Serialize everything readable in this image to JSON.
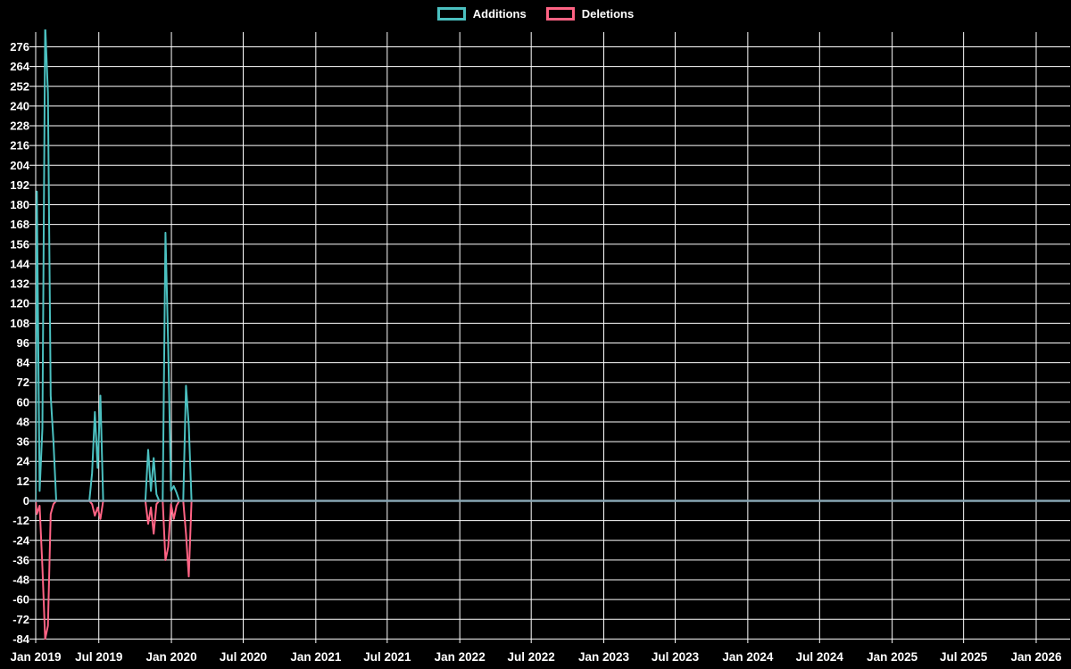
{
  "legend": {
    "items": [
      {
        "label": "Additions",
        "color": "#4bc0c0"
      },
      {
        "label": "Deletions",
        "color": "#ff6384"
      }
    ]
  },
  "chart_data": {
    "type": "line",
    "title": "",
    "xlabel": "",
    "ylabel": "",
    "legend_position": "top",
    "grid": true,
    "bg_color": "#000000",
    "grid_color": "#ffffff",
    "text_color": "#ffffff",
    "zero_line_color": "#87a6b3",
    "ylim": [
      -84,
      276
    ],
    "y_tick_step": 12,
    "y_ticks": [
      276,
      264,
      252,
      240,
      228,
      216,
      204,
      192,
      180,
      168,
      156,
      144,
      132,
      120,
      108,
      96,
      84,
      72,
      60,
      48,
      36,
      24,
      12,
      0,
      -12,
      -24,
      -36,
      -48,
      -60,
      -72,
      -84
    ],
    "x_range": {
      "min": "2019-01-22",
      "max": "2026-03-28"
    },
    "x_ticks": [
      {
        "label": "Jan 2019",
        "date": "2019-01-22"
      },
      {
        "label": "Jul 2019",
        "date": "2019-07-01"
      },
      {
        "label": "Jan 2020",
        "date": "2020-01-01"
      },
      {
        "label": "Jul 2020",
        "date": "2020-07-01"
      },
      {
        "label": "Jan 2021",
        "date": "2021-01-01"
      },
      {
        "label": "Jul 2021",
        "date": "2021-07-01"
      },
      {
        "label": "Jan 2022",
        "date": "2022-01-01"
      },
      {
        "label": "Jul 2022",
        "date": "2022-07-01"
      },
      {
        "label": "Jan 2023",
        "date": "2023-01-01"
      },
      {
        "label": "Jul 2023",
        "date": "2023-07-01"
      },
      {
        "label": "Jan 2024",
        "date": "2024-01-01"
      },
      {
        "label": "Jul 2024",
        "date": "2024-07-01"
      },
      {
        "label": "Jan 2025",
        "date": "2025-01-01"
      },
      {
        "label": "Jul 2025",
        "date": "2025-07-01"
      },
      {
        "label": "Jan 2026",
        "date": "2026-01-01"
      }
    ],
    "series": [
      {
        "name": "Additions",
        "color": "#4bc0c0",
        "key": "additions"
      },
      {
        "name": "Deletions",
        "color": "#ff6384",
        "key": "deletions"
      }
    ],
    "points": [
      {
        "date": "2019-01-22",
        "additions": 0,
        "deletions": 0
      },
      {
        "date": "2019-01-25",
        "additions": 188,
        "deletions": -8
      },
      {
        "date": "2019-02-01",
        "additions": 6,
        "deletions": -3
      },
      {
        "date": "2019-02-08",
        "additions": 44,
        "deletions": -40
      },
      {
        "date": "2019-02-15",
        "additions": 290,
        "deletions": -84
      },
      {
        "date": "2019-02-22",
        "additions": 248,
        "deletions": -76
      },
      {
        "date": "2019-03-01",
        "additions": 64,
        "deletions": -8
      },
      {
        "date": "2019-03-08",
        "additions": 36,
        "deletions": -2
      },
      {
        "date": "2019-03-15",
        "additions": 0,
        "deletions": 0
      },
      {
        "date": "2019-06-07",
        "additions": 0,
        "deletions": 0
      },
      {
        "date": "2019-06-14",
        "additions": 17,
        "deletions": -2
      },
      {
        "date": "2019-06-21",
        "additions": 54,
        "deletions": -9
      },
      {
        "date": "2019-06-28",
        "additions": 20,
        "deletions": -4
      },
      {
        "date": "2019-07-05",
        "additions": 64,
        "deletions": -11
      },
      {
        "date": "2019-07-12",
        "additions": 0,
        "deletions": 0
      },
      {
        "date": "2019-10-27",
        "additions": 0,
        "deletions": 0
      },
      {
        "date": "2019-11-03",
        "additions": 31,
        "deletions": -14
      },
      {
        "date": "2019-11-10",
        "additions": 6,
        "deletions": -4
      },
      {
        "date": "2019-11-17",
        "additions": 26,
        "deletions": -20
      },
      {
        "date": "2019-11-24",
        "additions": 4,
        "deletions": -2
      },
      {
        "date": "2019-12-01",
        "additions": 0,
        "deletions": 0
      },
      {
        "date": "2019-12-10",
        "additions": 0,
        "deletions": 0
      },
      {
        "date": "2019-12-17",
        "additions": 163,
        "deletions": -36
      },
      {
        "date": "2019-12-24",
        "additions": 93,
        "deletions": -28
      },
      {
        "date": "2019-12-31",
        "additions": 6,
        "deletions": -2
      },
      {
        "date": "2020-01-07",
        "additions": 9,
        "deletions": -11
      },
      {
        "date": "2020-01-14",
        "additions": 5,
        "deletions": -3
      },
      {
        "date": "2020-01-21",
        "additions": 0,
        "deletions": 0
      },
      {
        "date": "2020-01-31",
        "additions": 0,
        "deletions": 0
      },
      {
        "date": "2020-02-07",
        "additions": 70,
        "deletions": -20
      },
      {
        "date": "2020-02-14",
        "additions": 46,
        "deletions": -46
      },
      {
        "date": "2020-02-21",
        "additions": 0,
        "deletions": 0
      },
      {
        "date": "2026-03-28",
        "additions": 0,
        "deletions": 0
      }
    ]
  }
}
